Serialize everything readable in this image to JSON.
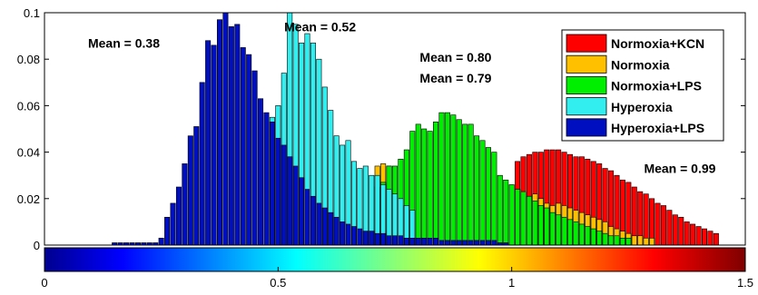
{
  "chart_data": {
    "type": "bar",
    "stacked_overlay": true,
    "xlim": [
      0,
      1.5
    ],
    "ylim": [
      0,
      0.1
    ],
    "bin_width": 0.0125,
    "yticks": [
      "0",
      "0.02",
      "0.04",
      "0.06",
      "0.08",
      "0.1"
    ],
    "colorbar_ticks": [
      "0",
      "0.5",
      "1",
      "1.5"
    ],
    "grid": false,
    "legend_position": "top-right",
    "series": [
      {
        "name": "Normoxia+KCN",
        "color": "#ff0000",
        "values": [
          [
            1.0125,
            0.036
          ],
          [
            1.025,
            0.038
          ],
          [
            1.0375,
            0.039
          ],
          [
            1.05,
            0.04
          ],
          [
            1.0625,
            0.04
          ],
          [
            1.075,
            0.041
          ],
          [
            1.0875,
            0.041
          ],
          [
            1.1,
            0.041
          ],
          [
            1.1125,
            0.04
          ],
          [
            1.125,
            0.039
          ],
          [
            1.1375,
            0.038
          ],
          [
            1.15,
            0.038
          ],
          [
            1.1625,
            0.037
          ],
          [
            1.175,
            0.036
          ],
          [
            1.1875,
            0.035
          ],
          [
            1.2,
            0.033
          ],
          [
            1.2125,
            0.032
          ],
          [
            1.225,
            0.03
          ],
          [
            1.2375,
            0.028
          ],
          [
            1.25,
            0.027
          ],
          [
            1.2625,
            0.025
          ],
          [
            1.275,
            0.023
          ],
          [
            1.2875,
            0.022
          ],
          [
            1.3,
            0.02
          ],
          [
            1.3125,
            0.018
          ],
          [
            1.325,
            0.017
          ],
          [
            1.3375,
            0.015
          ],
          [
            1.35,
            0.013
          ],
          [
            1.3625,
            0.012
          ],
          [
            1.375,
            0.01
          ],
          [
            1.3875,
            0.009
          ],
          [
            1.4,
            0.008
          ],
          [
            1.4125,
            0.007
          ],
          [
            1.425,
            0.006
          ],
          [
            1.4375,
            0.005
          ]
        ]
      },
      {
        "name": "Normoxia",
        "color": "#ffc000",
        "values": [
          [
            0.7125,
            0.034
          ],
          [
            0.725,
            0.035
          ],
          [
            0.7375,
            0.034
          ],
          [
            1.05,
            0.022
          ],
          [
            1.0625,
            0.02
          ],
          [
            1.075,
            0.018
          ],
          [
            1.0875,
            0.017
          ],
          [
            1.1,
            0.018
          ],
          [
            1.1125,
            0.017
          ],
          [
            1.125,
            0.016
          ],
          [
            1.1375,
            0.015
          ],
          [
            1.15,
            0.014
          ],
          [
            1.1625,
            0.013
          ],
          [
            1.175,
            0.012
          ],
          [
            1.1875,
            0.011
          ],
          [
            1.2,
            0.01
          ],
          [
            1.2125,
            0.008
          ],
          [
            1.225,
            0.007
          ],
          [
            1.2375,
            0.006
          ],
          [
            1.25,
            0.005
          ],
          [
            1.2625,
            0.004
          ],
          [
            1.275,
            0.004
          ],
          [
            1.2875,
            0.003
          ],
          [
            1.3,
            0.003
          ]
        ]
      },
      {
        "name": "Normoxia+LPS",
        "color": "#00ee00",
        "values": [
          [
            0.7125,
            0.025
          ],
          [
            0.725,
            0.027
          ],
          [
            0.7375,
            0.034
          ],
          [
            0.75,
            0.034
          ],
          [
            0.7625,
            0.037
          ],
          [
            0.775,
            0.041
          ],
          [
            0.7875,
            0.049
          ],
          [
            0.8,
            0.052
          ],
          [
            0.8125,
            0.05
          ],
          [
            0.825,
            0.049
          ],
          [
            0.8375,
            0.053
          ],
          [
            0.85,
            0.057
          ],
          [
            0.8625,
            0.057
          ],
          [
            0.875,
            0.056
          ],
          [
            0.8875,
            0.054
          ],
          [
            0.9,
            0.052
          ],
          [
            0.9125,
            0.052
          ],
          [
            0.925,
            0.047
          ],
          [
            0.9375,
            0.045
          ],
          [
            0.95,
            0.042
          ],
          [
            0.9625,
            0.04
          ],
          [
            0.975,
            0.03
          ],
          [
            0.9875,
            0.028
          ],
          [
            1.0,
            0.026
          ],
          [
            1.0125,
            0.024
          ],
          [
            1.025,
            0.023
          ],
          [
            1.0375,
            0.021
          ],
          [
            1.05,
            0.019
          ],
          [
            1.0625,
            0.017
          ],
          [
            1.075,
            0.016
          ],
          [
            1.0875,
            0.014
          ],
          [
            1.1,
            0.013
          ],
          [
            1.1125,
            0.012
          ],
          [
            1.125,
            0.011
          ],
          [
            1.1375,
            0.01
          ],
          [
            1.15,
            0.009
          ],
          [
            1.1625,
            0.008
          ],
          [
            1.175,
            0.007
          ],
          [
            1.1875,
            0.006
          ],
          [
            1.2,
            0.005
          ],
          [
            1.2125,
            0.004
          ],
          [
            1.225,
            0.004
          ],
          [
            1.2375,
            0.003
          ],
          [
            1.25,
            0.003
          ]
        ]
      },
      {
        "name": "Hyperoxia",
        "color": "#33eeee",
        "values": [
          [
            0.4875,
            0.055
          ],
          [
            0.5,
            0.06
          ],
          [
            0.5125,
            0.074
          ],
          [
            0.525,
            0.1
          ],
          [
            0.5375,
            0.095
          ],
          [
            0.55,
            0.087
          ],
          [
            0.5625,
            0.091
          ],
          [
            0.575,
            0.087
          ],
          [
            0.5875,
            0.08
          ],
          [
            0.6,
            0.068
          ],
          [
            0.6125,
            0.058
          ],
          [
            0.625,
            0.047
          ],
          [
            0.6375,
            0.043
          ],
          [
            0.65,
            0.045
          ],
          [
            0.6625,
            0.036
          ],
          [
            0.675,
            0.033
          ],
          [
            0.6875,
            0.034
          ],
          [
            0.7,
            0.03
          ],
          [
            0.7125,
            0.03
          ],
          [
            0.725,
            0.026
          ],
          [
            0.7375,
            0.024
          ],
          [
            0.75,
            0.022
          ],
          [
            0.7625,
            0.02
          ],
          [
            0.775,
            0.017
          ],
          [
            0.7875,
            0.015
          ]
        ]
      },
      {
        "name": "Hyperoxia+LPS",
        "color": "#0010c0",
        "values": [
          [
            0.15,
            0.001
          ],
          [
            0.1625,
            0.001
          ],
          [
            0.175,
            0.001
          ],
          [
            0.1875,
            0.001
          ],
          [
            0.2,
            0.001
          ],
          [
            0.2125,
            0.001
          ],
          [
            0.225,
            0.001
          ],
          [
            0.2375,
            0.001
          ],
          [
            0.25,
            0.003
          ],
          [
            0.2625,
            0.012
          ],
          [
            0.275,
            0.018
          ],
          [
            0.2875,
            0.025
          ],
          [
            0.3,
            0.035
          ],
          [
            0.3125,
            0.047
          ],
          [
            0.325,
            0.051
          ],
          [
            0.3375,
            0.07
          ],
          [
            0.35,
            0.088
          ],
          [
            0.3625,
            0.086
          ],
          [
            0.375,
            0.097
          ],
          [
            0.3875,
            0.1
          ],
          [
            0.4,
            0.094
          ],
          [
            0.4125,
            0.095
          ],
          [
            0.425,
            0.085
          ],
          [
            0.4375,
            0.082
          ],
          [
            0.45,
            0.075
          ],
          [
            0.4625,
            0.063
          ],
          [
            0.475,
            0.057
          ],
          [
            0.4875,
            0.053
          ],
          [
            0.5,
            0.046
          ],
          [
            0.5125,
            0.043
          ],
          [
            0.525,
            0.038
          ],
          [
            0.5375,
            0.034
          ],
          [
            0.55,
            0.029
          ],
          [
            0.5625,
            0.024
          ],
          [
            0.575,
            0.021
          ],
          [
            0.5875,
            0.018
          ],
          [
            0.6,
            0.016
          ],
          [
            0.6125,
            0.014
          ],
          [
            0.625,
            0.012
          ],
          [
            0.6375,
            0.01
          ],
          [
            0.65,
            0.009
          ],
          [
            0.6625,
            0.008
          ],
          [
            0.675,
            0.007
          ],
          [
            0.6875,
            0.006
          ],
          [
            0.7,
            0.006
          ],
          [
            0.7125,
            0.005
          ],
          [
            0.725,
            0.005
          ],
          [
            0.7375,
            0.004
          ],
          [
            0.75,
            0.004
          ],
          [
            0.7625,
            0.004
          ],
          [
            0.775,
            0.003
          ],
          [
            0.7875,
            0.003
          ],
          [
            0.8,
            0.003
          ],
          [
            0.8125,
            0.003
          ],
          [
            0.825,
            0.003
          ],
          [
            0.8375,
            0.003
          ],
          [
            0.85,
            0.002
          ],
          [
            0.8625,
            0.002
          ],
          [
            0.875,
            0.002
          ],
          [
            0.8875,
            0.002
          ],
          [
            0.9,
            0.002
          ],
          [
            0.9125,
            0.002
          ],
          [
            0.925,
            0.002
          ],
          [
            0.9375,
            0.002
          ],
          [
            0.95,
            0.002
          ],
          [
            0.9625,
            0.002
          ],
          [
            0.975,
            0.001
          ],
          [
            0.9875,
            0.001
          ]
        ]
      }
    ],
    "annotations": [
      {
        "text": "Mean = 0.38",
        "x": 0.17,
        "y": 0.085
      },
      {
        "text": "Mean = 0.52",
        "x": 0.59,
        "y": 0.092
      },
      {
        "text": "Mean = 0.80",
        "x": 0.88,
        "y": 0.079
      },
      {
        "text": "Mean = 0.79",
        "x": 0.88,
        "y": 0.07
      },
      {
        "text": "Mean = 0.99",
        "x": 1.36,
        "y": 0.031
      }
    ]
  }
}
